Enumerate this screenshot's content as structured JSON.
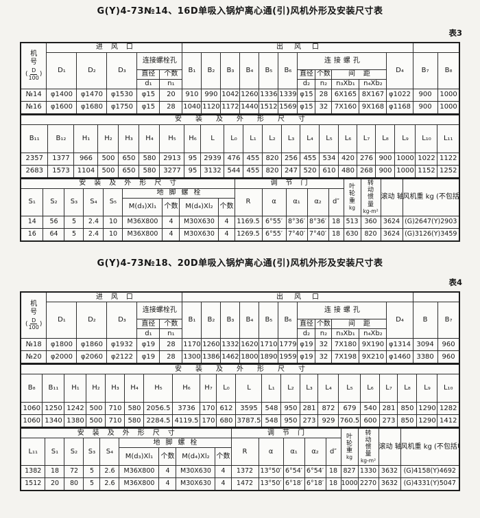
{
  "table3": {
    "title": "G(Y)4-73№14、16D单吸入锅炉离心通(引)风机外形及安装尺寸表",
    "tag": "表3",
    "band1": {
      "machine_no": {
        "label": "机\n号",
        "open": "(",
        "num": "D",
        "den": "100",
        "close": ")"
      },
      "inlet": "进风口",
      "outlet": "出风口",
      "inlet_bolt": "连接螺栓孔",
      "outlet_bolt": "连接螺孔",
      "dia": "直径",
      "qty": "个数",
      "pitch": "间距",
      "d1": "d₁",
      "n1": "n₁",
      "d2": "d₂",
      "n2": "n₂",
      "n3b1": "n₃Xb₁",
      "n4b2": "n₄Xb₂",
      "D1": "D₁",
      "D2": "D₂",
      "D3": "D₃",
      "B1": "B₁",
      "B2": "B₂",
      "B3": "B₃",
      "B4": "B₄",
      "B5": "B₅",
      "B6": "B₆",
      "r1": "D₄",
      "r2": "B₇",
      "r3": "B₈",
      "rows": [
        [
          "№14",
          "φ1400",
          "φ1470",
          "φ1530",
          "φ15",
          "20",
          "910",
          "990",
          "1042",
          "1260",
          "1336",
          "1339",
          "φ15",
          "28",
          "6X165",
          "8X167",
          "φ1022",
          "900",
          "1000"
        ],
        [
          "№16",
          "φ1600",
          "φ1680",
          "φ1750",
          "φ15",
          "28",
          "1040",
          "1120",
          "1172",
          "1440",
          "1512",
          "1569",
          "φ15",
          "32",
          "7X160",
          "9X168",
          "φ1168",
          "900",
          "1000"
        ]
      ]
    },
    "band2": {
      "header": "安装及外形尺寸",
      "cols": [
        "B₁₁",
        "B₁₂",
        "H₁",
        "H₂",
        "H₃",
        "H₄",
        "H₅",
        "H₆",
        "L",
        "L₀",
        "L₁",
        "L₂",
        "L₃",
        "L₄",
        "L₅",
        "L₆",
        "L₇",
        "L₈",
        "L₉",
        "L₁₀",
        "L₁₁"
      ],
      "rows": [
        [
          "2357",
          "1377",
          "966",
          "500",
          "650",
          "580",
          "2913",
          "95",
          "2939",
          "476",
          "455",
          "820",
          "256",
          "455",
          "534",
          "420",
          "276",
          "900",
          "1000",
          "1022",
          "1122"
        ],
        [
          "2683",
          "1573",
          "1104",
          "500",
          "650",
          "580",
          "3277",
          "95",
          "3132",
          "544",
          "455",
          "820",
          "247",
          "520",
          "610",
          "480",
          "268",
          "900",
          "1000",
          "1152",
          "1252"
        ]
      ]
    },
    "band3": {
      "header_left": "安装及外形尺寸",
      "header_damper": "调节门",
      "anchor": "地脚螺栓",
      "s1": "S₁",
      "s2": "S₂",
      "s3": "S₃",
      "s4": "S₄",
      "s5": "S₅",
      "m1": "M(d₃)Xl₁",
      "m2": "M(d₄)Xl₂",
      "qty": "个数",
      "R": "R",
      "a": "α",
      "a1": "α₁",
      "a2": "α₂",
      "dpp": "d″",
      "impeller": {
        "label": "叶轮重",
        "unit": "kg"
      },
      "inertia": {
        "label": "转动惯量",
        "unit": "kg-m²"
      },
      "bearing": "滚动\n轴承\n型号",
      "fan_weight": "风机重\nkg\n(不包括电机)",
      "rows": [
        [
          "14",
          "56",
          "5",
          "2.4",
          "10",
          "M36X800",
          "4",
          "M30X630",
          "4",
          "1169.5",
          "6°55′",
          "8°36′",
          "8°36′",
          "18",
          "513",
          "360",
          "3624",
          "(G)2647(Y)2903"
        ],
        [
          "16",
          "64",
          "5",
          "2.4",
          "10",
          "M36X800",
          "4",
          "M30X630",
          "4",
          "1269.5",
          "6°55′",
          "7°40′",
          "7°40′",
          "18",
          "630",
          "820",
          "3624",
          "(G)3126(Y)3459"
        ]
      ]
    }
  },
  "table4": {
    "title": "G(Y)4-73№18、20D单吸入锅炉离心通(引)风机外形及安装尺寸表",
    "tag": "表4",
    "band1": {
      "machine_no": {
        "label": "机\n号",
        "open": "(",
        "num": "D",
        "den": "100",
        "close": ")"
      },
      "inlet": "进风口",
      "outlet": "出风口",
      "inlet_bolt": "连接螺栓孔",
      "outlet_bolt": "连接螺孔",
      "dia": "直径",
      "qty": "个数",
      "pitch": "间距",
      "d1": "d₁",
      "n1": "n₁",
      "d2": "d₂",
      "n2": "n₂",
      "n3b1": "n₃Xb₁",
      "n4b2": "n₄Xb₂",
      "D1": "D₁",
      "D2": "D₂",
      "D3": "D₃",
      "B1": "B₁",
      "B2": "B₂",
      "B3": "B₃",
      "B4": "B₄",
      "B5": "B₅",
      "B6": "B₆",
      "r1": "D₄",
      "r2": "B",
      "r3": "B₇",
      "rows": [
        [
          "№18",
          "φ1800",
          "φ1860",
          "φ1932",
          "φ19",
          "28",
          "1170",
          "1260",
          "1332",
          "1620",
          "1710",
          "1779",
          "φ19",
          "32",
          "7X180",
          "9X190",
          "φ1314",
          "3094",
          "960"
        ],
        [
          "№20",
          "φ2000",
          "φ2060",
          "φ2122",
          "φ19",
          "28",
          "1300",
          "1386",
          "1462",
          "1800",
          "1890",
          "1959",
          "φ19",
          "32",
          "7X198",
          "9X210",
          "φ1460",
          "3380",
          "960"
        ]
      ]
    },
    "band2": {
      "header": "安装及外形尺寸",
      "cols": [
        "B₈",
        "B₁₁",
        "H₁",
        "H₂",
        "H₃",
        "H₄",
        "H₅",
        "H₆",
        "H₇",
        "L₀",
        "L",
        "L₁",
        "L₂",
        "L₃",
        "L₄",
        "L₅",
        "L₆",
        "L₇",
        "L₈",
        "L₉",
        "L₁₀"
      ],
      "rows": [
        [
          "1060",
          "1250",
          "1242",
          "500",
          "710",
          "580",
          "2056.5",
          "3736",
          "170",
          "612",
          "3595",
          "548",
          "950",
          "281",
          "872",
          "679",
          "540",
          "281",
          "850",
          "1290",
          "1282"
        ],
        [
          "1060",
          "1340",
          "1380",
          "500",
          "710",
          "580",
          "2284.5",
          "4119.5",
          "170",
          "680",
          "3787.5",
          "548",
          "950",
          "273",
          "929",
          "760.5",
          "600",
          "273",
          "850",
          "1290",
          "1412"
        ]
      ]
    },
    "band3": {
      "header_left": "安装及外形尺寸",
      "header_damper": "调节门",
      "anchor": "地脚螺栓",
      "s1": "L₁₁",
      "s2": "S₁",
      "s3": "S₂",
      "s4": "S₃",
      "s5": "S₄",
      "m1": "M(d₃)Xl₁",
      "m2": "M(d₄)Xl₂",
      "qty": "个数",
      "R": "R",
      "a": "α",
      "a1": "α₁",
      "a2": "α₂",
      "dpp": "d″",
      "impeller": {
        "label": "叶轮重",
        "unit": "kg"
      },
      "inertia": {
        "label": "转动惯量",
        "unit": "kg-m²"
      },
      "bearing": "滚动\n轴承\n型号",
      "fan_weight": "风机重\nkg\n(不包括电机)",
      "rows": [
        [
          "1382",
          "18",
          "72",
          "5",
          "2.6",
          "M36X800",
          "4",
          "M30X630",
          "4",
          "1372",
          "13°50′",
          "6°54′",
          "6°54′",
          "18",
          "827",
          "1330",
          "3632",
          "(G)4158(Y)4692"
        ],
        [
          "1512",
          "20",
          "80",
          "5",
          "2.6",
          "M36X800",
          "4",
          "M30X630",
          "4",
          "1472",
          "13°50′",
          "6°18′",
          "6°18′",
          "18",
          "1000",
          "2270",
          "3632",
          "(G)4331(Y)5047"
        ]
      ]
    }
  }
}
